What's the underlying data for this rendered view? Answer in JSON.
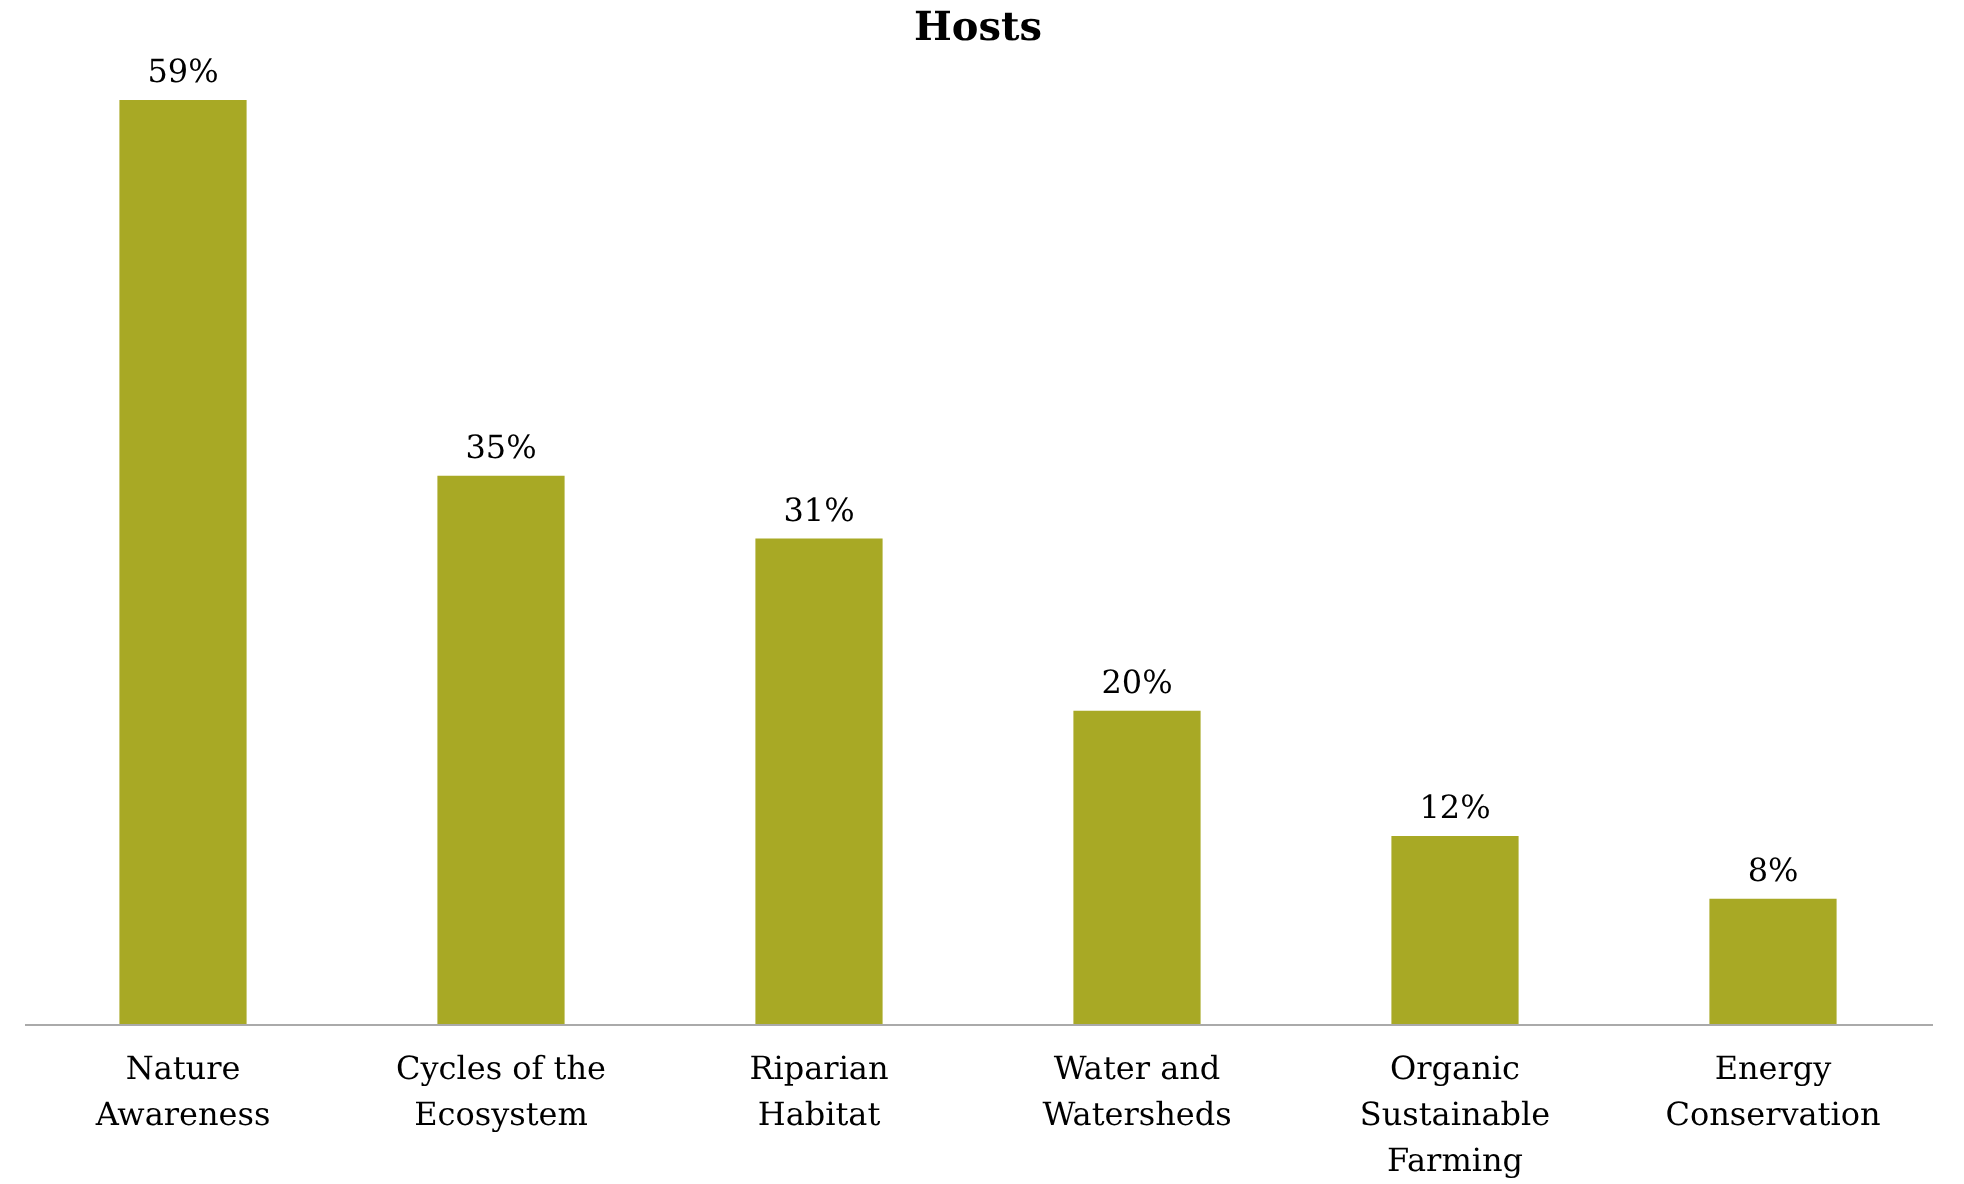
{
  "chart_data": {
    "type": "bar",
    "title": "Hosts",
    "categories": [
      "Nature Awareness",
      "Cycles of the Ecosystem",
      "Riparian Habitat",
      "Water and Watersheds",
      "Organic Sustainable Farming",
      "Energy Conservation"
    ],
    "values": [
      59,
      35,
      31,
      20,
      12,
      8
    ],
    "value_labels": [
      "59%",
      "35%",
      "31%",
      "20%",
      "12%",
      "8%"
    ],
    "color": "#a8a925"
  }
}
